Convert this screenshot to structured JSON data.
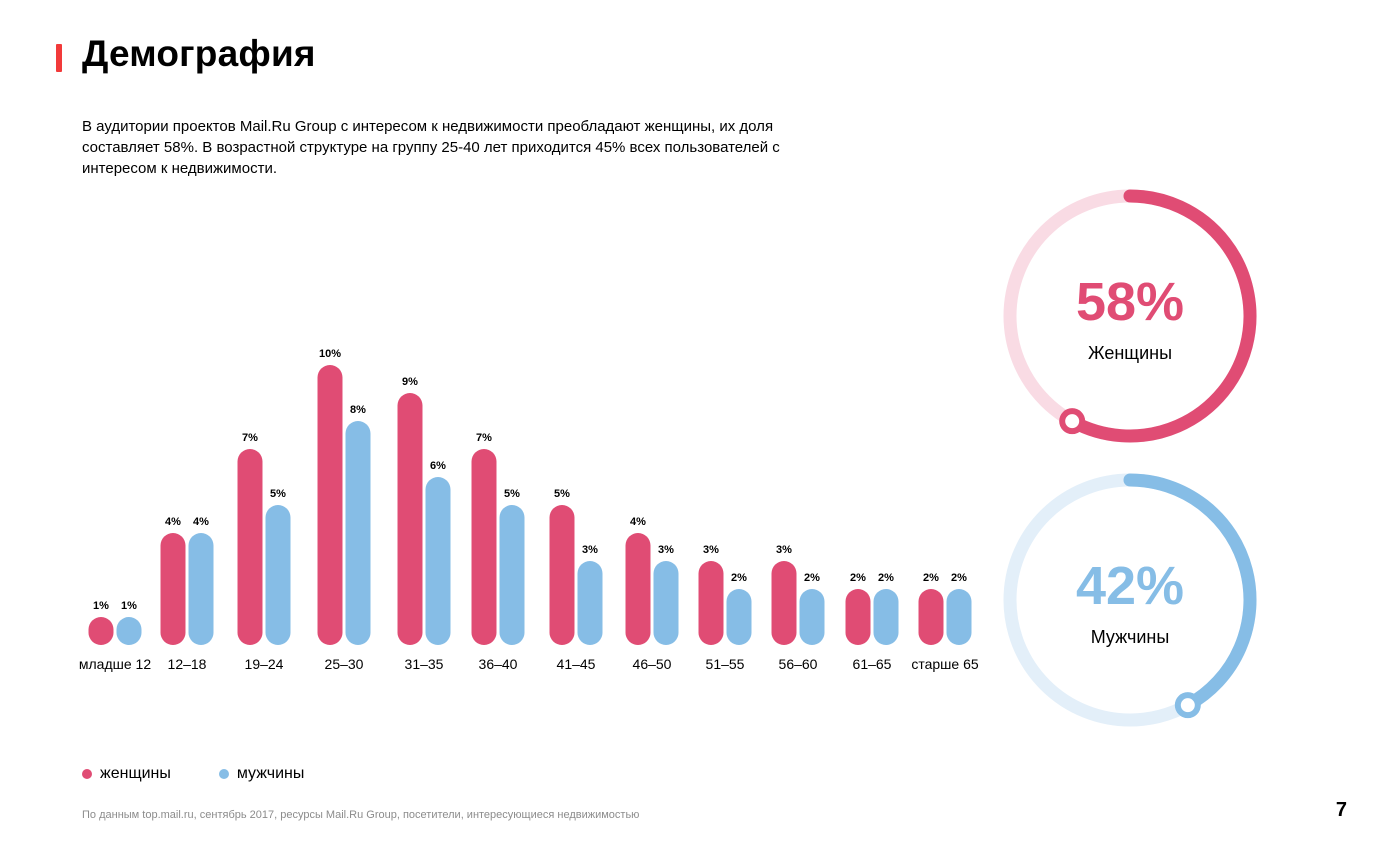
{
  "header": {
    "title": "Демография",
    "text": "В аудитории проектов Mail.Ru Group с интересом к недвижимости преобладают женщины, их доля составляет 58%. В возрастной структуре на группу 25-40 лет приходится 45% всех пользователей с интересом к недвижимости."
  },
  "colors": {
    "women": "#e04c74",
    "men": "#86bde6",
    "women_light": "#f9dbe4",
    "men_light": "#e3eff9",
    "accent": "#f23a3a"
  },
  "chart_data": [
    {
      "type": "bar",
      "categories": [
        "младше 12",
        "12–18",
        "19–24",
        "25–30",
        "31–35",
        "36–40",
        "41–45",
        "46–50",
        "51–55",
        "56–60",
        "61–65",
        "старше 65"
      ],
      "series": [
        {
          "name": "женщины",
          "values": [
            1,
            4,
            7,
            10,
            9,
            7,
            5,
            4,
            3,
            3,
            2,
            2
          ],
          "labels": [
            "1%",
            "4%",
            "7%",
            "10%",
            "9%",
            "7%",
            "5%",
            "4%",
            "3%",
            "3%",
            "2%",
            "2%"
          ]
        },
        {
          "name": "мужчины",
          "values": [
            1,
            4,
            5,
            8,
            6,
            5,
            3,
            3,
            2,
            2,
            2,
            2
          ],
          "labels": [
            "1%",
            "4%",
            "5%",
            "8%",
            "6%",
            "5%",
            "3%",
            "3%",
            "2%",
            "2%",
            "2%",
            "2%"
          ]
        }
      ],
      "title": "",
      "xlabel": "",
      "ylabel": "",
      "ylim": [
        0,
        10
      ],
      "grid": false,
      "legend": "bottom-left"
    },
    {
      "type": "pie",
      "categories": [
        "Женщины"
      ],
      "values": [
        58
      ],
      "labels": [
        "58%"
      ]
    },
    {
      "type": "pie",
      "categories": [
        "Мужчины"
      ],
      "values": [
        42
      ],
      "labels": [
        "42%"
      ]
    }
  ],
  "legend": {
    "women_label": "женщины",
    "men_label": "мужчины"
  },
  "footer": {
    "source": "По данным top.mail.ru, сентябрь 2017, ресурсы Mail.Ru Group, посетители, интересующиеся недвижимостью",
    "page": "7"
  }
}
